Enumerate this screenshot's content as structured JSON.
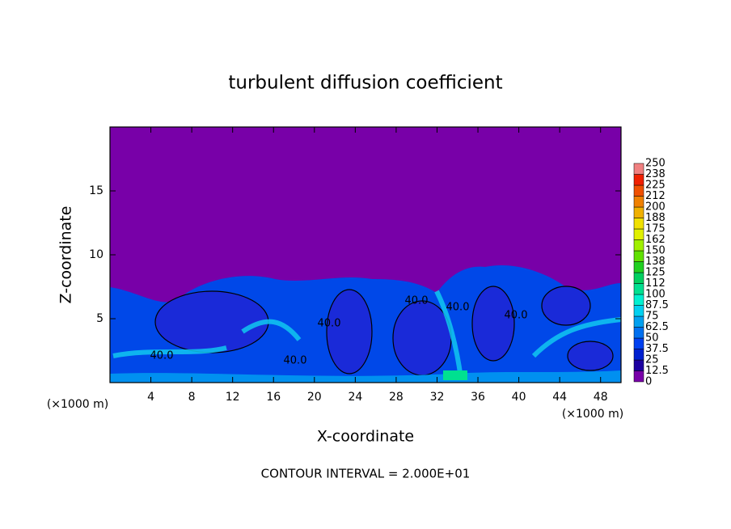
{
  "chart_data": {
    "type": "contour",
    "title": "turbulent diffusion coefficient",
    "x_label": "X-coordinate",
    "y_label": "Z-coordinate",
    "x_unit": "(×1000 m)",
    "y_unit": "(×1000 m)",
    "footer": "CONTOUR INTERVAL = 2.000E+01",
    "xlim": [
      0,
      50
    ],
    "ylim": [
      0,
      20
    ],
    "xticks": [
      4,
      8,
      12,
      16,
      20,
      24,
      28,
      32,
      36,
      40,
      44,
      48
    ],
    "yticks": [
      5,
      10,
      15
    ],
    "contour_labels": [
      "40.0",
      "40.0",
      "40.0",
      "40.0",
      "40.0",
      "40.0"
    ],
    "colorbar": {
      "ticks": [
        0,
        12.5,
        25,
        37.5,
        50,
        62.5,
        75,
        87.5,
        100,
        {
          "value": 112.5,
          "label": "112"
        },
        125,
        {
          "value": 137.5,
          "label": "138"
        },
        150,
        {
          "value": 162.5,
          "label": "162"
        },
        175,
        {
          "value": 187.5,
          "label": "188"
        },
        200,
        {
          "value": 212.5,
          "label": "212"
        },
        225,
        {
          "value": 237.5,
          "label": "238"
        },
        250
      ],
      "colors": [
        "#7800a8",
        "#1c00a0",
        "#0020d0",
        "#0040f0",
        "#0070f0",
        "#00a0f0",
        "#00d0f0",
        "#00f0d0",
        "#00e090",
        "#00d060",
        "#20d020",
        "#60e000",
        "#a0f000",
        "#e0f000",
        "#f0e000",
        "#f0b000",
        "#f08000",
        "#f05000",
        "#f02000",
        "#f08080"
      ]
    }
  }
}
